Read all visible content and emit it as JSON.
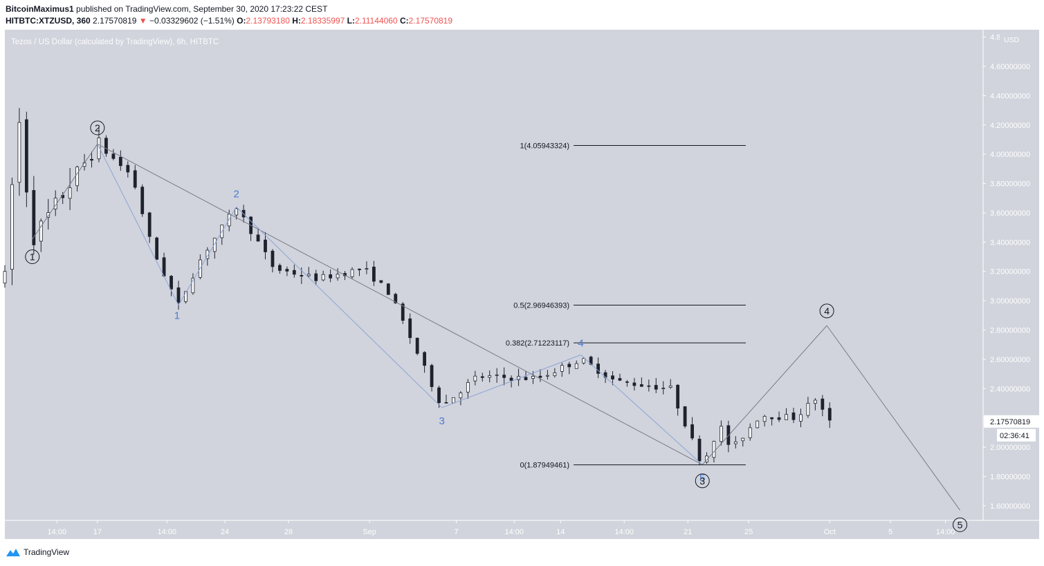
{
  "header": {
    "author": "BitcoinMaximus1",
    "published": "published on TradingView.com, September 30, 2020 17:23:22 CEST",
    "symbol": "HITBTC:XTZUSD, 360",
    "last": "2.17570819",
    "arrow": "▼",
    "change": "−0.03329602 (−1.51%)",
    "o_label": "O:",
    "o_value": "2.13793180",
    "h_label": "H:",
    "h_value": "2.18335997",
    "l_label": "L:",
    "l_value": "2.11144060",
    "c_label": "C:",
    "c_value": "2.17570819"
  },
  "footer": {
    "brand": "TradingView",
    "logo_icon": "tradingview-logo-icon"
  },
  "colors": {
    "background": "#d1d4dc",
    "candle": "#1e222d",
    "wave": "#787b86",
    "subwave": "#8ca3d6",
    "subwave_label": "#4a7bd4",
    "down": "#ef5350"
  },
  "chart_data": {
    "type": "candlestick",
    "title": "Tezos / US Dollar (calculated by TradingView), 6h, HITBTC",
    "unit_label": "USD",
    "y_ticks": [
      {
        "value": 4.8,
        "label": "4.8"
      },
      {
        "value": 4.6,
        "label": "4.60000000"
      },
      {
        "value": 4.4,
        "label": "4.40000000"
      },
      {
        "value": 4.2,
        "label": "4.20000000"
      },
      {
        "value": 4.0,
        "label": "4.00000000"
      },
      {
        "value": 3.8,
        "label": "3.80000000"
      },
      {
        "value": 3.6,
        "label": "3.60000000"
      },
      {
        "value": 3.4,
        "label": "3.40000000"
      },
      {
        "value": 3.2,
        "label": "3.20000000"
      },
      {
        "value": 3.0,
        "label": "3.00000000"
      },
      {
        "value": 2.8,
        "label": "2.80000000"
      },
      {
        "value": 2.6,
        "label": "2.60000000"
      },
      {
        "value": 2.4,
        "label": "2.40000000"
      },
      {
        "value": 2.2,
        "label": "2.20000000"
      },
      {
        "value": 2.0,
        "label": "2.00000000"
      },
      {
        "value": 1.8,
        "label": "1.80000000"
      },
      {
        "value": 1.6,
        "label": "1.60000000"
      }
    ],
    "x_ticks": [
      {
        "day": 0.0,
        "label": "14:00"
      },
      {
        "day": 1.4,
        "label": "17"
      },
      {
        "day": 3.8,
        "label": "14:00"
      },
      {
        "day": 5.8,
        "label": "24"
      },
      {
        "day": 8.0,
        "label": "28"
      },
      {
        "day": 10.8,
        "label": "Sep"
      },
      {
        "day": 13.8,
        "label": "7"
      },
      {
        "day": 15.8,
        "label": "14:00"
      },
      {
        "day": 17.4,
        "label": "14"
      },
      {
        "day": 19.6,
        "label": "14:00"
      },
      {
        "day": 21.8,
        "label": "21"
      },
      {
        "day": 23.9,
        "label": "25"
      },
      {
        "day": 26.7,
        "label": "Oct"
      },
      {
        "day": 28.8,
        "label": "5"
      },
      {
        "day": 30.7,
        "label": "14:00"
      }
    ],
    "y_range": [
      1.5,
      4.85
    ],
    "x_range": [
      -1.8,
      32.0
    ],
    "last_price": {
      "value": 2.17570819,
      "label": "2.17570819",
      "countdown": "02:36:41"
    },
    "key_points": [
      {
        "day": -1.8,
        "price": 3.15
      },
      {
        "day": -1.35,
        "price": 4.3
      },
      {
        "day": -0.85,
        "price": 3.42
      },
      {
        "day": 1.4,
        "price": 4.07
      },
      {
        "day": 2.6,
        "price": 3.85
      },
      {
        "day": 3.3,
        "price": 3.35
      },
      {
        "day": 4.2,
        "price": 2.97
      },
      {
        "day": 5.0,
        "price": 3.3
      },
      {
        "day": 6.2,
        "price": 3.64
      },
      {
        "day": 7.5,
        "price": 3.22
      },
      {
        "day": 9.0,
        "price": 3.15
      },
      {
        "day": 10.6,
        "price": 3.22
      },
      {
        "day": 11.5,
        "price": 3.05
      },
      {
        "day": 13.3,
        "price": 2.28
      },
      {
        "day": 14.5,
        "price": 2.48
      },
      {
        "day": 16.6,
        "price": 2.47
      },
      {
        "day": 18.1,
        "price": 2.6
      },
      {
        "day": 19.3,
        "price": 2.45
      },
      {
        "day": 21.2,
        "price": 2.4
      },
      {
        "day": 22.3,
        "price": 1.88
      },
      {
        "day": 22.9,
        "price": 2.15
      },
      {
        "day": 23.3,
        "price": 1.98
      },
      {
        "day": 24.3,
        "price": 2.22
      },
      {
        "day": 25.5,
        "price": 2.2
      },
      {
        "day": 26.2,
        "price": 2.33
      },
      {
        "day": 26.7,
        "price": 2.17
      }
    ],
    "wave_lines": [
      {
        "from": [
          -0.85,
          3.42
        ],
        "to": [
          1.4,
          4.07
        ]
      },
      {
        "from": [
          1.4,
          4.07
        ],
        "to": [
          22.3,
          1.88
        ]
      },
      {
        "from": [
          22.3,
          1.88
        ],
        "to": [
          26.6,
          2.83
        ]
      },
      {
        "from": [
          26.6,
          2.83
        ],
        "to": [
          31.2,
          1.57
        ]
      }
    ],
    "subwave_lines": [
      {
        "from": [
          1.4,
          4.07
        ],
        "to": [
          4.2,
          2.97
        ]
      },
      {
        "from": [
          4.2,
          2.97
        ],
        "to": [
          6.2,
          3.64
        ]
      },
      {
        "from": [
          6.2,
          3.64
        ],
        "to": [
          13.3,
          2.27
        ]
      },
      {
        "from": [
          13.3,
          2.27
        ],
        "to": [
          18.1,
          2.63
        ]
      },
      {
        "from": [
          18.1,
          2.63
        ],
        "to": [
          22.3,
          1.88
        ]
      }
    ],
    "wave_labels": [
      {
        "text": "1",
        "day": -0.85,
        "price": 3.3
      },
      {
        "text": "2",
        "day": 1.4,
        "price": 4.18
      },
      {
        "text": "3",
        "day": 22.3,
        "price": 1.77
      },
      {
        "text": "4",
        "day": 26.6,
        "price": 2.93
      },
      {
        "text": "5",
        "day": 31.2,
        "price": 1.47
      }
    ],
    "subwave_labels": [
      {
        "text": "1",
        "day": 4.15,
        "price": 2.9
      },
      {
        "text": "2",
        "day": 6.2,
        "price": 3.73
      },
      {
        "text": "3",
        "day": 13.3,
        "price": 2.18
      },
      {
        "text": "4",
        "day": 18.1,
        "price": 2.71
      },
      {
        "text": "5",
        "day": 22.3,
        "price": 1.79
      }
    ],
    "fib_levels": [
      {
        "label": "1(4.05943324)",
        "value": 4.05943324
      },
      {
        "label": "0.5(2.96946393)",
        "value": 2.96946393
      },
      {
        "label": "0.382(2.71223117)",
        "value": 2.71223117
      },
      {
        "label": "0(1.87949461)",
        "value": 1.87949461
      }
    ],
    "fib_range_days": [
      17.85,
      23.8
    ]
  }
}
